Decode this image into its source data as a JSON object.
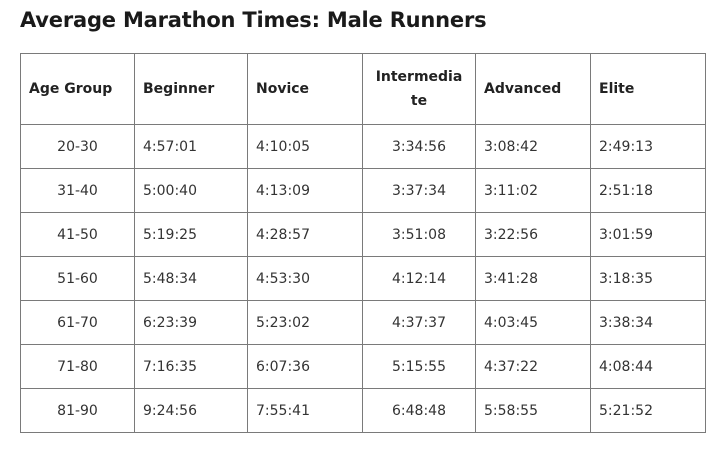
{
  "title": "Average Marathon Times: Male Runners",
  "table": {
    "headers": [
      "Age Group",
      "Beginner",
      "Novice",
      "Intermediate",
      "Advanced",
      "Elite"
    ],
    "rows": [
      [
        "20-30",
        "4:57:01",
        "4:10:05",
        "3:34:56",
        "3:08:42",
        "2:49:13"
      ],
      [
        "31-40",
        "5:00:40",
        "4:13:09",
        "3:37:34",
        "3:11:02",
        "2:51:18"
      ],
      [
        "41-50",
        "5:19:25",
        "4:28:57",
        "3:51:08",
        "3:22:56",
        "3:01:59"
      ],
      [
        "51-60",
        "5:48:34",
        "4:53:30",
        "4:12:14",
        "3:41:28",
        "3:18:35"
      ],
      [
        "61-70",
        "6:23:39",
        "5:23:02",
        "4:37:37",
        "4:03:45",
        "3:38:34"
      ],
      [
        "71-80",
        "7:16:35",
        "6:07:36",
        "5:15:55",
        "4:37:22",
        "4:08:44"
      ],
      [
        "81-90",
        "9:24:56",
        "7:55:41",
        "6:48:48",
        "5:58:55",
        "5:21:52"
      ]
    ]
  }
}
